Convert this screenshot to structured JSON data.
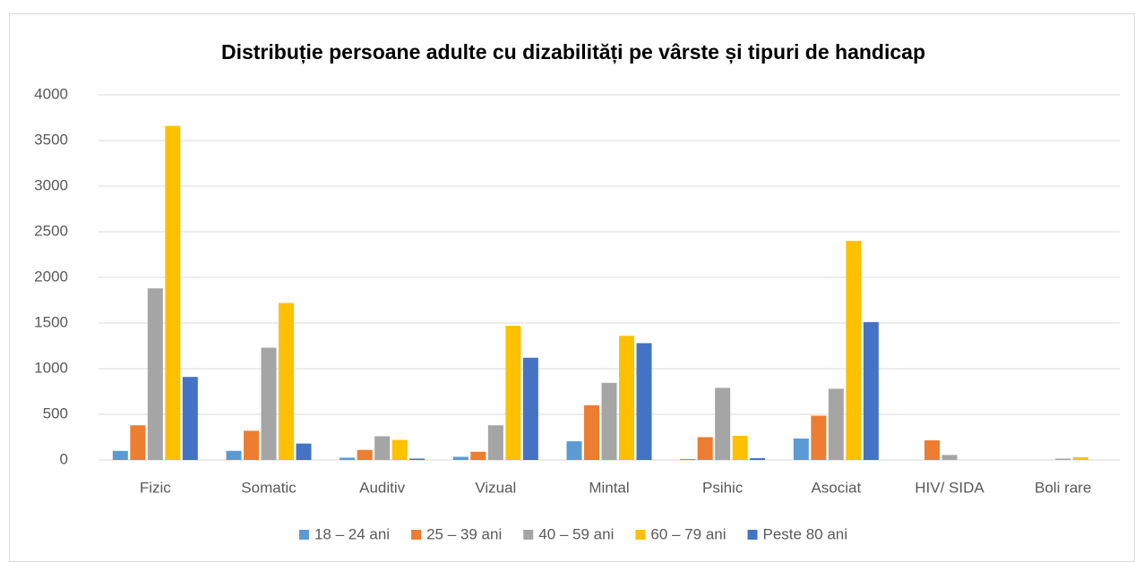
{
  "chart_data": {
    "type": "bar",
    "title": "Distribuție persoane adulte cu dizabilități pe vârste și tipuri de handicap",
    "categories": [
      "Fizic",
      "Somatic",
      "Auditiv",
      "Vizual",
      "Mintal",
      "Psihic",
      "Asociat",
      "HIV/ SIDA",
      "Boli rare"
    ],
    "series": [
      {
        "name": "18 – 24 ani",
        "color": "#5b9bd5",
        "values": [
          100,
          100,
          25,
          35,
          205,
          10,
          235,
          0,
          0
        ]
      },
      {
        "name": "25 – 39 ani",
        "color": "#ed7d31",
        "values": [
          380,
          320,
          110,
          90,
          600,
          250,
          485,
          215,
          0
        ]
      },
      {
        "name": "40 – 59 ani",
        "color": "#a5a5a5",
        "values": [
          1880,
          1230,
          260,
          380,
          845,
          790,
          780,
          55,
          15
        ]
      },
      {
        "name": "60 – 79 ani",
        "color": "#ffc000",
        "values": [
          3660,
          1720,
          220,
          1470,
          1360,
          265,
          2400,
          0,
          30
        ]
      },
      {
        "name": "Peste  80 ani",
        "color": "#4472c4",
        "values": [
          910,
          180,
          15,
          1120,
          1280,
          20,
          1510,
          0,
          0
        ]
      }
    ],
    "ylim": [
      0,
      4000
    ],
    "yticks": [
      0,
      500,
      1000,
      1500,
      2000,
      2500,
      3000,
      3500,
      4000
    ],
    "grid": true,
    "legend": "bottom"
  }
}
